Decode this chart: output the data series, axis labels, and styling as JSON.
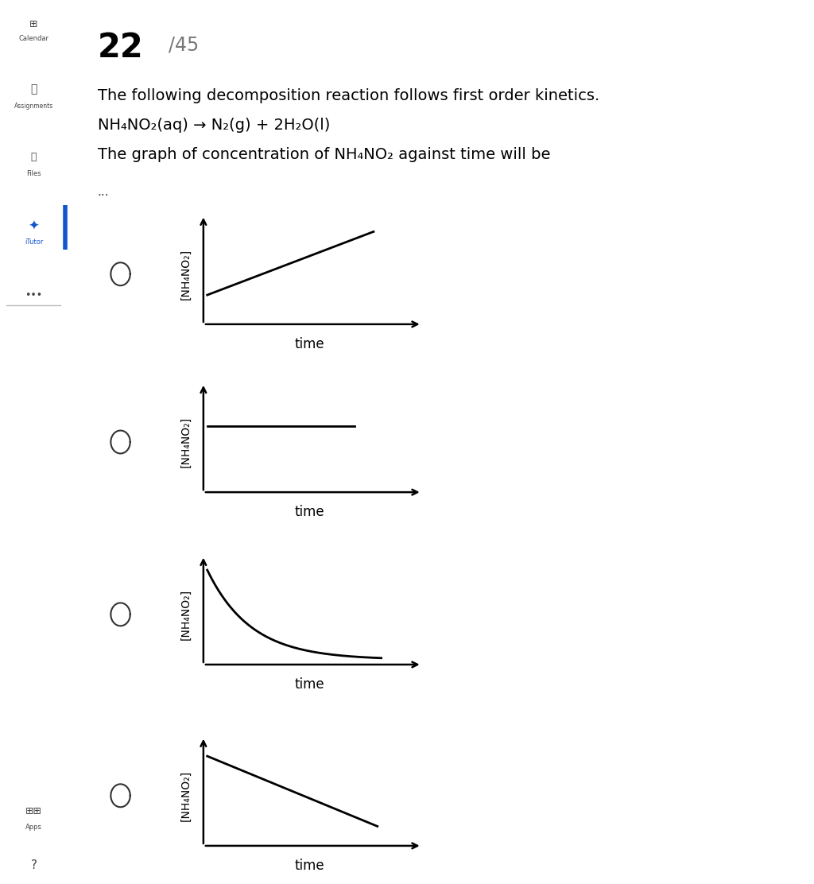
{
  "title_number": "22",
  "title_suffix": "/45",
  "question_line1": "The following decomposition reaction follows first order kinetics.",
  "question_line2": "NH₄NO₂(aq) → N₂(g) + 2H₂O(l)",
  "question_line3": "The graph of concentration of NH₄NO₂ against time will be",
  "ylabel": "[NH₄NO₂]",
  "xlabel": "time",
  "bg_color": "#ffffff",
  "sidebar_color": "#eeeeee",
  "line_color": "#000000",
  "text_color": "#000000",
  "graph_plots": [
    "linear_increase",
    "horizontal",
    "exponential_decay",
    "linear_decrease"
  ]
}
